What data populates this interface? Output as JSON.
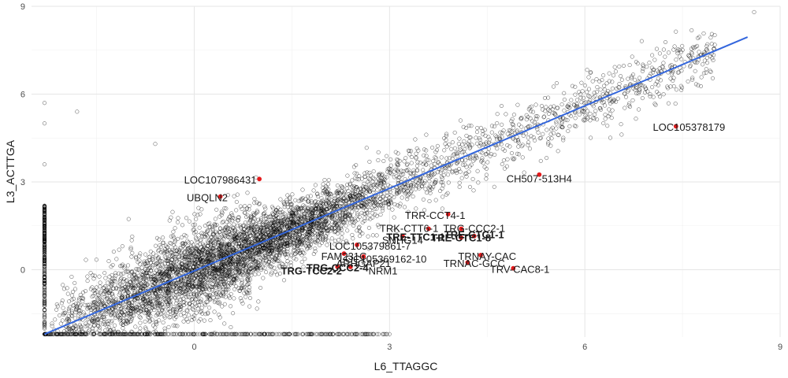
{
  "chart_data": {
    "type": "scatter",
    "title": "",
    "xlabel": "L6_TTAGGC",
    "ylabel": "L3_ACTTGA",
    "xlim": [
      -2.5,
      9.0
    ],
    "ylim": [
      -2.3,
      9.0
    ],
    "x_ticks": [
      0,
      3,
      6,
      9
    ],
    "y_ticks": [
      0,
      3,
      6,
      9
    ],
    "x_tick_labels": [
      "0",
      "3",
      "6",
      "9"
    ],
    "y_tick_labels": [
      "0",
      "3",
      "6",
      "9"
    ],
    "grid": true,
    "point_style": "open-circle",
    "point_color": "#000000",
    "highlight_color": "#e41a1c",
    "trend_color": "#3366dd",
    "trend_line": {
      "x": [
        -2.3,
        8.5
      ],
      "y": [
        -2.2,
        7.95
      ]
    },
    "floor_y": -2.2,
    "floor_x_range": [
      -2.3,
      3.0
    ],
    "wall_x": -2.3,
    "wall_y_range": [
      -2.2,
      2.2
    ],
    "outliers": [
      {
        "x": 8.6,
        "y": 8.8
      },
      {
        "x": -2.3,
        "y": 5.7
      },
      {
        "x": -2.3,
        "y": 5.0
      },
      {
        "x": -1.8,
        "y": 5.4
      },
      {
        "x": -0.6,
        "y": 4.3
      },
      {
        "x": -2.3,
        "y": 3.6
      }
    ],
    "labeled_points": [
      {
        "label": "LOC105378179",
        "x": 7.4,
        "y": 4.9
      },
      {
        "label": "CH507-513H4",
        "x": 5.3,
        "y": 3.25
      },
      {
        "label": "LOC107986431",
        "x": 1.0,
        "y": 3.1
      },
      {
        "label": "UBQLN2",
        "x": 0.4,
        "y": 2.5
      },
      {
        "label": "TRR-CCT4-1",
        "x": 3.9,
        "y": 1.9
      },
      {
        "label": "TRK-CTT6-1",
        "x": 3.6,
        "y": 1.4
      },
      {
        "label": "TRG-CCC2-1",
        "x": 4.1,
        "y": 1.4
      },
      {
        "label": "TRE-TTC1-1",
        "x": 3.2,
        "y": 1.15
      },
      {
        "label": "TRE-CTC1-1",
        "x": 4.3,
        "y": 1.15
      },
      {
        "label": "TRE-CTC1-8",
        "x": 4.1,
        "y": 1.1
      },
      {
        "label": "LOC105379861-7",
        "x": 2.5,
        "y": 0.85
      },
      {
        "label": "FAM231C",
        "x": 2.3,
        "y": 0.55
      },
      {
        "label": "LOC105369162-10",
        "x": 2.6,
        "y": 0.45
      },
      {
        "label": "TRG-TCC2-2",
        "x": 2.2,
        "y": 0.1
      },
      {
        "label": "TRG-CCC2-4",
        "x": 2.4,
        "y": 0.1
      },
      {
        "label": "TRNAY-CAC",
        "x": 4.4,
        "y": 0.5
      },
      {
        "label": "TRNAC-GCC",
        "x": 4.2,
        "y": 0.25
      },
      {
        "label": "TRV-CAC8-1",
        "x": 4.9,
        "y": 0.05
      }
    ],
    "label_texts": [
      {
        "text": "LOC105378179",
        "x": 7.6,
        "y": 4.85,
        "bold": false
      },
      {
        "text": "CH507-513H4",
        "x": 5.3,
        "y": 3.1,
        "bold": false
      },
      {
        "text": "LOC107986431",
        "x": 0.4,
        "y": 3.05,
        "bold": false
      },
      {
        "text": "UBQLN2",
        "x": 0.2,
        "y": 2.45,
        "bold": false
      },
      {
        "text": "TRR-CCT4-1",
        "x": 3.7,
        "y": 1.85,
        "bold": false
      },
      {
        "text": "TRK-CTT6-1",
        "x": 3.3,
        "y": 1.4,
        "bold": false
      },
      {
        "text": "TRG-CCC2-1",
        "x": 4.3,
        "y": 1.4,
        "bold": false
      },
      {
        "text": "TRE-TTC1-1",
        "x": 3.4,
        "y": 1.1,
        "bold": true
      },
      {
        "text": "TRE-CTC1-8",
        "x": 4.1,
        "y": 1.08,
        "bold": true
      },
      {
        "text": "TRE-CTC1-1",
        "x": 4.3,
        "y": 1.18,
        "bold": true
      },
      {
        "text": "SNHG14",
        "x": 3.2,
        "y": 1.0,
        "bold": false
      },
      {
        "text": "LOC105379861-7",
        "x": 2.7,
        "y": 0.8,
        "bold": false
      },
      {
        "text": "FAM231C",
        "x": 2.3,
        "y": 0.45,
        "bold": false
      },
      {
        "text": "LOC105369162-10",
        "x": 2.9,
        "y": 0.35,
        "bold": false
      },
      {
        "text": "TRNAY-CAC",
        "x": 4.5,
        "y": 0.45,
        "bold": false
      },
      {
        "text": "TRNAC-GCC",
        "x": 4.3,
        "y": 0.2,
        "bold": false
      },
      {
        "text": "TRV-CAC8-1",
        "x": 5.0,
        "y": 0.0,
        "bold": false
      },
      {
        "text": "TRG-TCC2-2",
        "x": 1.8,
        "y": -0.05,
        "bold": true
      },
      {
        "text": "TRG-CCC2-4",
        "x": 2.2,
        "y": 0.05,
        "bold": true
      },
      {
        "text": "ARHGAP21",
        "x": 2.6,
        "y": 0.2,
        "bold": false
      },
      {
        "text": "NRM1",
        "x": 2.9,
        "y": -0.05,
        "bold": false
      }
    ]
  }
}
